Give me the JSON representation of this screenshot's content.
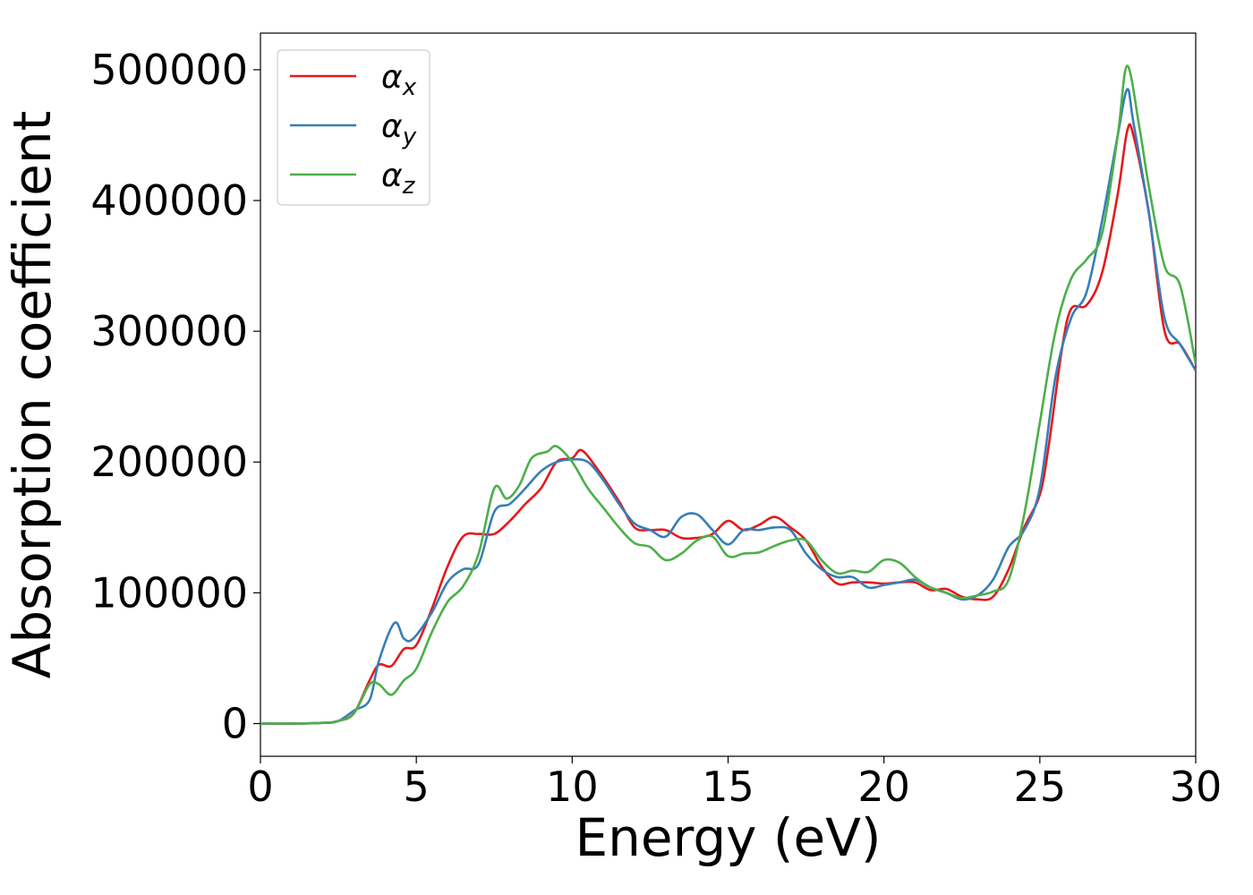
{
  "chart_data": {
    "type": "line",
    "xlabel": "Energy (eV)",
    "ylabel": "Absorption coefficient",
    "xlim": [
      0,
      30
    ],
    "ylim": [
      -25000,
      528000
    ],
    "xticks": [
      "0",
      "5",
      "10",
      "15",
      "20",
      "25",
      "30"
    ],
    "yticks": [
      "0",
      "100000",
      "200000",
      "300000",
      "400000",
      "500000"
    ],
    "grid": false,
    "legend_position": "top-left",
    "series": [
      {
        "name": "αx",
        "legend_symbol": "α",
        "legend_subscript": "x",
        "color": "#e41a1c",
        "x": [
          0,
          1,
          2,
          2.5,
          3,
          3.5,
          3.8,
          4.2,
          4.6,
          5,
          5.5,
          6,
          6.5,
          7,
          7.5,
          8,
          8.5,
          9,
          9.5,
          10,
          10.3,
          10.8,
          11.5,
          12,
          12.5,
          13,
          13.5,
          14,
          14.5,
          15,
          15.5,
          16,
          16.5,
          17,
          17.5,
          18,
          18.5,
          19,
          19.5,
          20,
          20.5,
          21,
          21.5,
          22,
          22.5,
          23,
          23.5,
          24,
          24.5,
          25,
          25.3,
          25.7,
          26,
          26.5,
          27,
          27.5,
          27.8,
          28,
          28.5,
          29,
          29.5,
          30
        ],
        "y": [
          0,
          0,
          500,
          2000,
          8000,
          33000,
          45000,
          44000,
          57000,
          60000,
          88000,
          120000,
          143000,
          145000,
          145000,
          155000,
          168000,
          180000,
          200000,
          203000,
          209000,
          195000,
          170000,
          150000,
          148000,
          148000,
          142000,
          142000,
          145000,
          155000,
          148000,
          152000,
          158000,
          150000,
          140000,
          120000,
          107000,
          108000,
          108000,
          107000,
          108000,
          108000,
          102000,
          103000,
          97000,
          95000,
          97000,
          118000,
          150000,
          175000,
          215000,
          285000,
          317000,
          320000,
          345000,
          405000,
          453000,
          450000,
          390000,
          300000,
          290000,
          270000
        ]
      },
      {
        "name": "αy",
        "legend_symbol": "α",
        "legend_subscript": "y",
        "color": "#377eb8",
        "x": [
          0,
          1,
          2,
          2.5,
          3,
          3.5,
          3.8,
          4.3,
          4.6,
          4.9,
          5.5,
          6,
          6.5,
          7,
          7.5,
          8,
          8.5,
          9,
          9.5,
          10,
          10.5,
          11,
          11.5,
          12,
          12.5,
          13,
          13.5,
          14,
          14.5,
          15,
          15.5,
          16,
          16.5,
          17,
          17.5,
          18,
          18.5,
          19,
          19.5,
          20,
          20.5,
          21,
          21.5,
          22,
          22.5,
          23,
          23.5,
          24,
          24.5,
          25,
          25.5,
          26,
          26.5,
          27,
          27.5,
          27.8,
          28,
          28.5,
          29,
          29.5,
          30
        ],
        "y": [
          0,
          0,
          500,
          2000,
          10000,
          18000,
          48000,
          77000,
          65000,
          65000,
          85000,
          108000,
          118000,
          122000,
          162000,
          168000,
          180000,
          193000,
          200000,
          202000,
          200000,
          186000,
          168000,
          153000,
          148000,
          143000,
          158000,
          160000,
          148000,
          137000,
          148000,
          148000,
          150000,
          148000,
          130000,
          118000,
          112000,
          112000,
          104000,
          106000,
          108000,
          110000,
          104000,
          100000,
          95000,
          98000,
          110000,
          135000,
          148000,
          180000,
          265000,
          310000,
          330000,
          385000,
          450000,
          485000,
          460000,
          390000,
          310000,
          290000,
          270000
        ]
      },
      {
        "name": "αz",
        "legend_symbol": "α",
        "legend_subscript": "z",
        "color": "#4daf4a",
        "x": [
          0,
          1,
          2,
          2.5,
          3,
          3.5,
          3.8,
          4.2,
          4.6,
          5,
          5.5,
          6,
          6.5,
          7,
          7.5,
          7.9,
          8.3,
          8.7,
          9.2,
          9.5,
          10,
          10.5,
          11,
          11.5,
          12,
          12.5,
          13,
          13.5,
          14,
          14.5,
          15,
          15.5,
          16,
          16.5,
          17,
          17.5,
          18,
          18.5,
          19,
          19.5,
          20,
          20.5,
          21,
          21.5,
          22,
          22.5,
          23,
          23.5,
          24,
          24.5,
          25,
          25.5,
          26,
          26.5,
          27,
          27.5,
          27.8,
          28.2,
          28.5,
          29,
          29.5,
          30
        ],
        "y": [
          0,
          0,
          500,
          2000,
          8000,
          30000,
          30000,
          22000,
          33000,
          42000,
          70000,
          93000,
          105000,
          130000,
          180000,
          172000,
          182000,
          203000,
          208000,
          212000,
          200000,
          180000,
          165000,
          150000,
          138000,
          135000,
          125000,
          130000,
          140000,
          143000,
          128000,
          130000,
          131000,
          136000,
          140000,
          140000,
          125000,
          115000,
          117000,
          116000,
          125000,
          123000,
          112000,
          104000,
          100000,
          96000,
          98000,
          101000,
          110000,
          160000,
          230000,
          300000,
          340000,
          355000,
          375000,
          450000,
          503000,
          455000,
          410000,
          350000,
          335000,
          275000
        ]
      }
    ]
  }
}
